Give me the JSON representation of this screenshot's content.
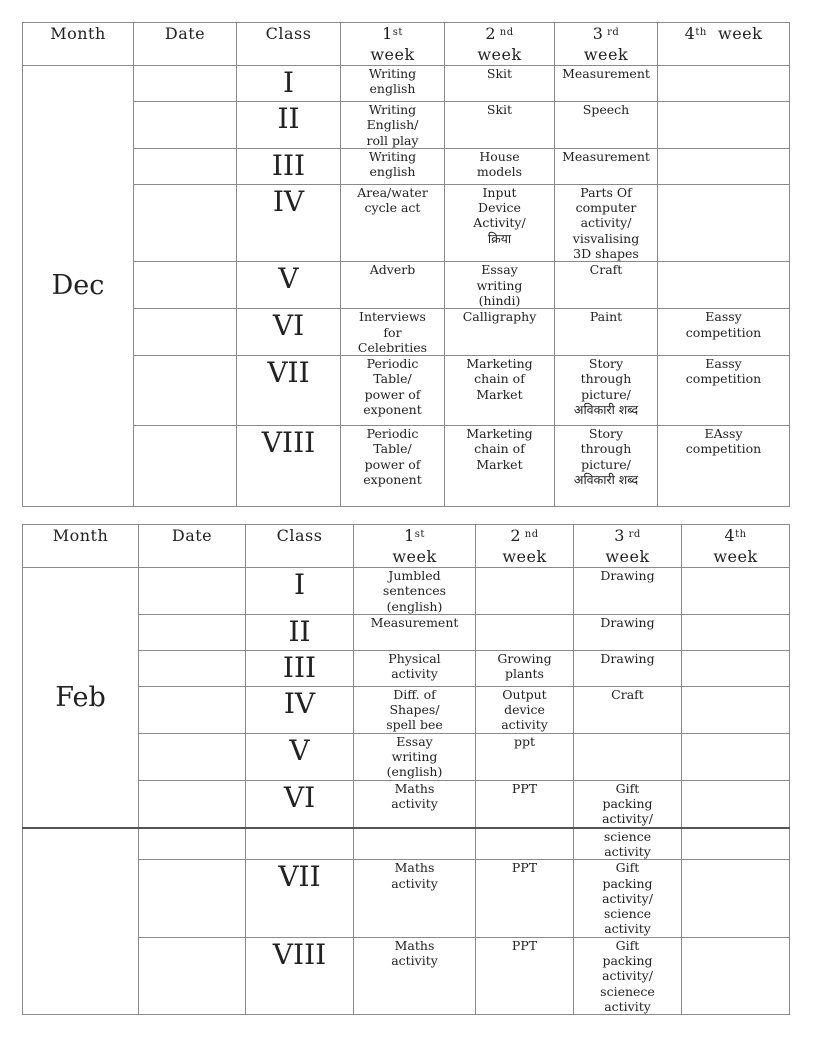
{
  "tables": [
    {
      "headers": [
        {
          "text": "Month"
        },
        {
          "text": "Date"
        },
        {
          "text": "Class"
        },
        {
          "num": "1",
          "sup": "st",
          "word": "week"
        },
        {
          "num": "2",
          "sup": " nd",
          "word": "week"
        },
        {
          "num": "3",
          "sup": " rd",
          "word": "week"
        },
        {
          "num": "4",
          "sup": "th",
          "word": "  week",
          "inline": true
        }
      ],
      "groups": [
        {
          "month": "Dec",
          "rows": [
            {
              "class": "I",
              "w1": "Writing\nenglish",
              "w2": "Skit",
              "w3": "Measurement",
              "w4": ""
            },
            {
              "class": "II",
              "w1": "Writing\nEnglish/\nroll play",
              "w2": "Skit",
              "w3": "Speech",
              "w4": ""
            },
            {
              "class": "III",
              "w1": "Writing\nenglish",
              "w2": "House\nmodels",
              "w3": "Measurement",
              "w4": ""
            },
            {
              "class": "IV",
              "w1": "Area/water\ncycle act",
              "w2": "Input\nDevice\nActivity/\nक्रिया",
              "w3": "Parts Of\ncomputer\nactivity/\nvisvalising\n3D shapes",
              "w4": ""
            },
            {
              "class": "V",
              "w1": "Adverb",
              "w2": "Essay\nwriting\n(hindi)",
              "w3": "Craft",
              "w4": ""
            },
            {
              "class": "VI",
              "w1": "Interviews\nfor\nCelebrities",
              "w2": "Calligraphy",
              "w3": "Paint",
              "w4": "Eassy\ncompetition"
            },
            {
              "class": "VII",
              "w1": "Periodic\nTable/\npower of\nexponent",
              "w2": "Marketing\nchain of\nMarket",
              "w3": "Story\nthrough\npicture/\nअविकारी शब्द",
              "w4": "Eassy\ncompetition"
            },
            {
              "class": "VIII",
              "w1": "Periodic\nTable/\npower of\nexponent",
              "w2": "Marketing\nchain of\nMarket",
              "w3": "Story\nthrough\npicture/\nअविकारी शब्द",
              "w4": "EAssy\ncompetition"
            }
          ]
        }
      ]
    },
    {
      "headers": [
        {
          "text": "Month"
        },
        {
          "text": "Date"
        },
        {
          "text": "Class"
        },
        {
          "num": "1",
          "sup": "st",
          "word": "week"
        },
        {
          "num": "2",
          "sup": " nd",
          "word": "week"
        },
        {
          "num": "3",
          "sup": " rd",
          "word": "week"
        },
        {
          "num": "4",
          "sup": "th",
          "word": "week"
        }
      ],
      "groups": [
        {
          "month": "Feb",
          "rows": [
            {
              "class": "I",
              "w1": "Jumbled\nsentences\n(english)",
              "w2": "",
              "w3": "Drawing",
              "w4": ""
            },
            {
              "class": "II",
              "w1": "Measurement",
              "w2": "",
              "w3": "Drawing",
              "w4": ""
            },
            {
              "class": "III",
              "w1": "Physical\nactivity",
              "w2": "Growing\nplants",
              "w3": "Drawing",
              "w4": ""
            },
            {
              "class": "IV",
              "w1": "Diff. of\nShapes/\nspell bee",
              "w2": "Output\ndevice\nactivity",
              "w3": "Craft",
              "w4": ""
            },
            {
              "class": "V",
              "w1": "Essay\nwriting\n(english)",
              "w2": "ppt",
              "w3": "",
              "w4": ""
            },
            {
              "class": "VI",
              "w1": "Maths\nactivity",
              "w2": "PPT",
              "w3": "Gift\npacking\nactivity/",
              "w4": ""
            }
          ]
        },
        {
          "month": "",
          "rows": [
            {
              "class": "",
              "w1": "",
              "w2": "",
              "w3": "science\nactivity",
              "w4": ""
            },
            {
              "class": "VII",
              "w1": "Maths\nactivity",
              "w2": "PPT",
              "w3": "Gift\npacking\nactivity/\nscience\nactivity",
              "w4": ""
            },
            {
              "class": "VIII",
              "w1": "Maths\nactivity",
              "w2": "PPT",
              "w3": "Gift\npacking\nactivity/\nscienece\nactivity",
              "w4": ""
            }
          ]
        }
      ]
    }
  ]
}
